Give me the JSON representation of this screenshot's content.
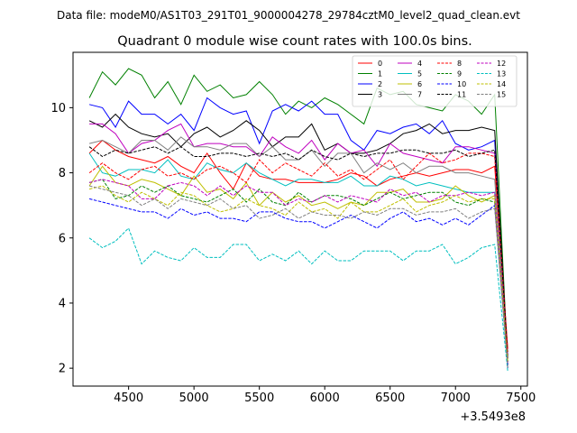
{
  "figure": {
    "suptitle": "Data file: modeM0/AS1T03_291T01_9000004278_29784cztM0_level2_quad_clean.evt"
  },
  "chart_data": {
    "type": "line",
    "title": "Quadrant 0 module wise count rates with 100.0s bins.",
    "xlabel": "",
    "ylabel": "",
    "x_offset_label": "+3.5493e8",
    "xlim": [
      4075,
      7550
    ],
    "ylim": [
      1.45,
      11.7
    ],
    "x_ticks": [
      4500,
      5000,
      5500,
      6000,
      6500,
      7000,
      7500
    ],
    "y_ticks": [
      2,
      4,
      6,
      8,
      10
    ],
    "x": [
      4200,
      4300,
      4400,
      4500,
      4600,
      4700,
      4800,
      4900,
      5000,
      5100,
      5200,
      5300,
      5400,
      5500,
      5600,
      5700,
      5800,
      5900,
      6000,
      6100,
      6200,
      6300,
      6400,
      6500,
      6600,
      6700,
      6800,
      6900,
      7000,
      7100,
      7200,
      7300,
      7400
    ],
    "legend_position": "upper-right",
    "legend_columns": 4,
    "grid": false,
    "series": [
      {
        "name": "0",
        "color": "#ff0000",
        "dash": "solid",
        "values": [
          8.6,
          9.0,
          8.7,
          8.5,
          8.4,
          8.3,
          8.5,
          8.2,
          8.0,
          8.6,
          8.0,
          7.5,
          8.3,
          7.9,
          7.8,
          7.8,
          7.7,
          7.7,
          7.7,
          7.8,
          8.0,
          7.9,
          7.6,
          7.8,
          7.9,
          8.0,
          7.9,
          8.0,
          8.1,
          8.1,
          8.0,
          8.2,
          2.6
        ]
      },
      {
        "name": "1",
        "color": "#008000",
        "dash": "solid",
        "values": [
          10.3,
          11.1,
          10.7,
          11.2,
          11.0,
          10.3,
          10.8,
          10.1,
          11.0,
          10.5,
          10.7,
          10.3,
          10.4,
          10.8,
          10.4,
          9.8,
          10.2,
          10.0,
          10.3,
          10.1,
          9.8,
          9.5,
          10.6,
          10.4,
          10.5,
          10.1,
          10.0,
          9.9,
          10.4,
          10.2,
          9.8,
          10.4,
          2.1
        ]
      },
      {
        "name": "2",
        "color": "#0000ff",
        "dash": "solid",
        "values": [
          10.1,
          10.0,
          9.4,
          10.2,
          9.8,
          9.8,
          9.5,
          9.8,
          9.3,
          10.3,
          10.0,
          9.8,
          9.9,
          8.9,
          9.9,
          10.1,
          9.9,
          10.2,
          9.8,
          9.8,
          9.0,
          8.7,
          9.3,
          9.2,
          9.4,
          9.5,
          9.2,
          9.6,
          8.9,
          8.7,
          8.8,
          9.0,
          2.0
        ]
      },
      {
        "name": "3",
        "color": "#000000",
        "dash": "solid",
        "values": [
          9.6,
          9.4,
          9.8,
          9.4,
          9.2,
          9.1,
          9.2,
          8.8,
          9.2,
          9.4,
          9.1,
          9.3,
          9.6,
          9.3,
          8.8,
          9.1,
          9.1,
          9.5,
          8.7,
          8.9,
          8.6,
          8.6,
          8.7,
          8.9,
          9.2,
          9.3,
          9.5,
          9.2,
          9.3,
          9.3,
          9.4,
          9.3,
          2.3
        ]
      },
      {
        "name": "4",
        "color": "#bf00bf",
        "dash": "solid",
        "values": [
          9.5,
          9.5,
          9.2,
          8.6,
          8.9,
          9.0,
          9.3,
          9.5,
          8.8,
          8.9,
          8.9,
          8.8,
          8.8,
          8.5,
          9.1,
          8.8,
          8.6,
          9.0,
          8.4,
          8.9,
          8.6,
          8.7,
          8.2,
          8.9,
          8.6,
          8.5,
          8.4,
          8.3,
          8.8,
          8.8,
          8.7,
          8.6,
          2.4
        ]
      },
      {
        "name": "5",
        "color": "#00bfbf",
        "dash": "solid",
        "values": [
          8.6,
          8.0,
          7.9,
          8.1,
          8.1,
          8.0,
          8.4,
          7.9,
          7.8,
          8.3,
          8.1,
          8.0,
          8.3,
          8.0,
          7.8,
          7.6,
          7.8,
          7.8,
          7.7,
          7.7,
          7.9,
          7.6,
          7.6,
          7.9,
          7.8,
          7.6,
          7.7,
          7.6,
          7.5,
          7.4,
          7.4,
          7.4,
          2.2
        ]
      },
      {
        "name": "6",
        "color": "#bfbf00",
        "dash": "solid",
        "values": [
          7.6,
          8.2,
          7.7,
          7.6,
          7.8,
          7.7,
          7.5,
          7.3,
          7.9,
          7.4,
          7.5,
          7.2,
          7.7,
          7.0,
          7.4,
          7.1,
          7.3,
          7.0,
          7.1,
          6.9,
          7.1,
          7.0,
          7.4,
          7.4,
          7.5,
          7.1,
          7.1,
          7.2,
          7.6,
          7.3,
          7.1,
          7.3,
          2.2
        ]
      },
      {
        "name": "7",
        "color": "#808080",
        "dash": "solid",
        "values": [
          8.9,
          9.0,
          8.8,
          8.6,
          9.0,
          9.0,
          8.7,
          9.1,
          8.8,
          8.8,
          8.7,
          8.9,
          8.9,
          8.5,
          8.8,
          8.4,
          8.4,
          8.7,
          8.2,
          8.6,
          8.6,
          8.0,
          8.3,
          8.1,
          8.3,
          8.0,
          8.2,
          8.2,
          8.0,
          8.0,
          7.9,
          7.8,
          2.3
        ]
      },
      {
        "name": "8",
        "color": "#ff0000",
        "dash": "dashed",
        "values": [
          8.0,
          8.3,
          8.0,
          7.8,
          8.1,
          8.2,
          7.9,
          8.0,
          7.8,
          8.1,
          8.2,
          8.0,
          7.7,
          8.4,
          8.0,
          8.3,
          8.1,
          7.9,
          8.3,
          7.9,
          8.1,
          7.8,
          8.1,
          8.4,
          7.8,
          8.2,
          8.6,
          8.3,
          8.4,
          8.6,
          8.6,
          8.5,
          2.5
        ]
      },
      {
        "name": "9",
        "color": "#008000",
        "dash": "dashed",
        "values": [
          7.7,
          7.8,
          7.2,
          7.3,
          7.6,
          7.4,
          7.6,
          7.3,
          7.2,
          7.1,
          7.3,
          7.5,
          7.1,
          7.5,
          7.1,
          7.0,
          7.4,
          7.1,
          7.3,
          7.3,
          7.2,
          7.0,
          7.2,
          7.4,
          7.2,
          7.3,
          7.4,
          7.4,
          7.1,
          7.0,
          7.2,
          7.1,
          2.2
        ]
      },
      {
        "name": "10",
        "color": "#0000ff",
        "dash": "dashed",
        "values": [
          7.2,
          7.1,
          7.0,
          6.9,
          6.8,
          6.8,
          6.6,
          6.9,
          6.7,
          6.8,
          6.6,
          6.6,
          6.5,
          6.8,
          6.8,
          6.6,
          6.5,
          6.5,
          6.3,
          6.5,
          6.7,
          6.5,
          6.3,
          6.6,
          6.8,
          6.5,
          6.6,
          6.4,
          6.6,
          6.4,
          6.7,
          7.0,
          2.1
        ]
      },
      {
        "name": "11",
        "color": "#000000",
        "dash": "dashed",
        "values": [
          8.8,
          8.5,
          8.7,
          8.6,
          8.7,
          8.8,
          8.6,
          8.8,
          8.5,
          8.5,
          8.6,
          8.6,
          8.5,
          8.6,
          8.5,
          8.6,
          8.4,
          8.7,
          8.5,
          8.4,
          8.6,
          8.5,
          8.6,
          8.6,
          8.7,
          8.7,
          8.6,
          8.6,
          8.7,
          8.5,
          8.6,
          8.7,
          2.3
        ]
      },
      {
        "name": "12",
        "color": "#bf00bf",
        "dash": "dashed",
        "values": [
          7.7,
          7.8,
          7.7,
          7.6,
          7.2,
          7.2,
          7.6,
          7.7,
          7.6,
          7.3,
          7.6,
          7.3,
          7.6,
          7.4,
          7.4,
          7.0,
          7.2,
          7.1,
          7.3,
          7.1,
          7.3,
          7.2,
          7.1,
          7.5,
          7.3,
          7.4,
          7.1,
          7.3,
          7.3,
          7.4,
          7.3,
          7.4,
          2.1
        ]
      },
      {
        "name": "13",
        "color": "#00bfbf",
        "dash": "dashed",
        "values": [
          6.0,
          5.7,
          5.9,
          6.3,
          5.2,
          5.6,
          5.4,
          5.3,
          5.7,
          5.4,
          5.4,
          5.8,
          5.8,
          5.3,
          5.5,
          5.3,
          5.6,
          5.2,
          5.6,
          5.3,
          5.3,
          5.6,
          5.6,
          5.6,
          5.3,
          5.6,
          5.6,
          5.8,
          5.2,
          5.4,
          5.7,
          5.8,
          1.9
        ]
      },
      {
        "name": "14",
        "color": "#bfbf00",
        "dash": "dashed",
        "values": [
          7.5,
          7.6,
          7.3,
          7.1,
          7.4,
          7.2,
          7.0,
          7.4,
          7.3,
          7.0,
          6.8,
          6.9,
          7.2,
          7.0,
          6.9,
          6.7,
          7.1,
          6.8,
          6.9,
          6.6,
          7.1,
          6.8,
          6.8,
          7.0,
          7.2,
          6.8,
          7.0,
          7.1,
          7.3,
          7.1,
          7.2,
          7.2,
          2.2
        ]
      },
      {
        "name": "15",
        "color": "#808080",
        "dash": "dashed",
        "values": [
          7.6,
          7.5,
          7.4,
          7.3,
          7.0,
          7.2,
          6.9,
          7.2,
          7.1,
          7.0,
          7.2,
          6.9,
          7.0,
          6.6,
          6.7,
          6.9,
          6.6,
          6.8,
          6.7,
          6.7,
          6.6,
          6.8,
          6.7,
          6.9,
          6.9,
          6.7,
          6.8,
          6.8,
          6.9,
          6.6,
          6.8,
          6.9,
          2.0
        ]
      }
    ]
  }
}
